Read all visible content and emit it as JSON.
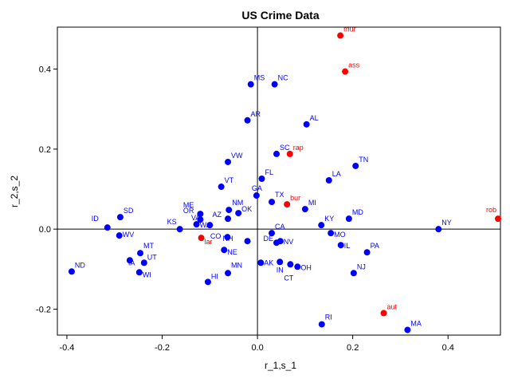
{
  "chart_data": {
    "type": "scatter",
    "title": "US Crime Data",
    "xlabel": "r_1,s_1",
    "ylabel": "r_2,s_2",
    "xlim": [
      -0.42,
      0.51
    ],
    "ylim": [
      -0.265,
      0.505
    ],
    "xticks": [
      -0.4,
      -0.2,
      0.0,
      0.2,
      0.4
    ],
    "xtick_labels": [
      "-0.4",
      "-0.2",
      "0.0",
      "0.2",
      "0.4"
    ],
    "yticks": [
      -0.2,
      0.0,
      0.2,
      0.4
    ],
    "ytick_labels": [
      "-0.2",
      "0.0",
      "0.2",
      "0.4"
    ],
    "reference_lines": {
      "x": 0,
      "y": 0
    },
    "grid": false,
    "colors": {
      "states": "#0000ff",
      "crimes": "#ff0000"
    },
    "series": [
      {
        "points": [
          {
            "label": "MS",
            "x": -0.014,
            "y": 0.362
          },
          {
            "label": "NC",
            "x": 0.036,
            "y": 0.362
          },
          {
            "label": "AR",
            "x": -0.021,
            "y": 0.272
          },
          {
            "label": "AL",
            "x": 0.103,
            "y": 0.262
          },
          {
            "label": "SC",
            "x": 0.04,
            "y": 0.188
          },
          {
            "label": "VW",
            "x": -0.062,
            "y": 0.168
          },
          {
            "label": "TN",
            "x": 0.206,
            "y": 0.158
          },
          {
            "label": "FL",
            "x": 0.009,
            "y": 0.126
          },
          {
            "label": "LA",
            "x": 0.15,
            "y": 0.122
          },
          {
            "label": "VT",
            "x": -0.076,
            "y": 0.106
          },
          {
            "label": "GA",
            "x": -0.002,
            "y": 0.084
          },
          {
            "label": "TX",
            "x": 0.03,
            "y": 0.068
          },
          {
            "label": "MI",
            "x": 0.1,
            "y": 0.05
          },
          {
            "label": "NM",
            "x": -0.06,
            "y": 0.048
          },
          {
            "label": "ME",
            "x": -0.12,
            "y": 0.038
          },
          {
            "label": "OK",
            "x": -0.04,
            "y": 0.04
          },
          {
            "label": "MD",
            "x": 0.192,
            "y": 0.026
          },
          {
            "label": "OR",
            "x": -0.12,
            "y": 0.024
          },
          {
            "label": "AZ",
            "x": -0.062,
            "y": 0.026
          },
          {
            "label": "SD",
            "x": -0.288,
            "y": 0.03
          },
          {
            "label": "ID",
            "x": -0.315,
            "y": 0.004
          },
          {
            "label": "KS",
            "x": -0.163,
            "y": 0.0
          },
          {
            "label": "WA",
            "x": -0.128,
            "y": 0.012
          },
          {
            "label": "VA",
            "x": -0.1,
            "y": 0.01
          },
          {
            "label": "KY",
            "x": 0.134,
            "y": 0.01
          },
          {
            "label": "NY",
            "x": 0.38,
            "y": 0.0
          },
          {
            "label": "CA",
            "x": 0.03,
            "y": -0.01
          },
          {
            "label": "CO",
            "x": -0.063,
            "y": -0.02
          },
          {
            "label": "WV",
            "x": -0.29,
            "y": -0.016
          },
          {
            "label": "MO",
            "x": 0.154,
            "y": -0.01
          },
          {
            "label": "NH",
            "x": -0.021,
            "y": -0.03
          },
          {
            "label": "DE",
            "x": 0.04,
            "y": -0.034
          },
          {
            "label": "NV",
            "x": 0.048,
            "y": -0.03
          },
          {
            "label": "IL",
            "x": 0.175,
            "y": -0.04
          },
          {
            "label": "PA",
            "x": 0.23,
            "y": -0.058
          },
          {
            "label": "MT",
            "x": -0.246,
            "y": -0.06
          },
          {
            "label": "NE",
            "x": -0.07,
            "y": -0.052
          },
          {
            "label": "UT",
            "x": -0.238,
            "y": -0.084
          },
          {
            "label": "IA",
            "x": -0.268,
            "y": -0.078
          },
          {
            "label": "AK",
            "x": 0.007,
            "y": -0.084
          },
          {
            "label": "IN",
            "x": 0.047,
            "y": -0.082
          },
          {
            "label": "CT",
            "x": 0.069,
            "y": -0.088
          },
          {
            "label": "OH",
            "x": 0.084,
            "y": -0.094
          },
          {
            "label": "NJ",
            "x": 0.202,
            "y": -0.11
          },
          {
            "label": "ND",
            "x": -0.39,
            "y": -0.106
          },
          {
            "label": "WI",
            "x": -0.248,
            "y": -0.108
          },
          {
            "label": "MN",
            "x": -0.062,
            "y": -0.11
          },
          {
            "label": "HI",
            "x": -0.104,
            "y": -0.132
          },
          {
            "label": "RI",
            "x": 0.135,
            "y": -0.238
          },
          {
            "label": "MA",
            "x": 0.315,
            "y": -0.252
          }
        ]
      },
      {
        "points": [
          {
            "label": "mur",
            "x": 0.174,
            "y": 0.484
          },
          {
            "label": "ass",
            "x": 0.184,
            "y": 0.394
          },
          {
            "label": "rap",
            "x": 0.068,
            "y": 0.188
          },
          {
            "label": "bur",
            "x": 0.062,
            "y": 0.062
          },
          {
            "label": "rob",
            "x": 0.505,
            "y": 0.026
          },
          {
            "label": "lar",
            "x": -0.118,
            "y": -0.022
          },
          {
            "label": "aut",
            "x": 0.265,
            "y": -0.21
          }
        ]
      }
    ]
  }
}
